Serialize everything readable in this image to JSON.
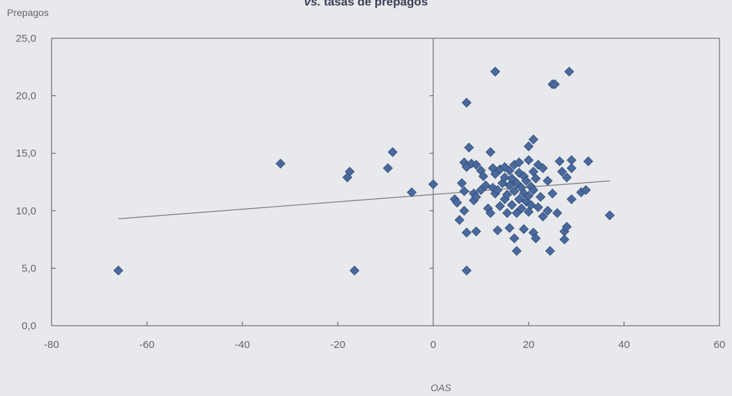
{
  "chart_data": {
    "type": "scatter",
    "title_prefix": "vs.",
    "title_rest": "tasas de prepagos",
    "ylabel": "Prepagos",
    "xlabel": "OAS",
    "xlim": [
      -80,
      60
    ],
    "ylim": [
      0,
      25
    ],
    "x_ticks": [
      "-80",
      "-60",
      "-40",
      "-20",
      "0",
      "20",
      "40",
      "60"
    ],
    "y_ticks": [
      "0,0",
      "5,0",
      "10,0",
      "15,0",
      "20,0",
      "25,0"
    ],
    "grid": false,
    "marker_color": "#4a6a9e",
    "trendline": {
      "x": [
        -66,
        37
      ],
      "y": [
        9.3,
        12.6
      ]
    },
    "points": [
      [
        -66,
        4.8
      ],
      [
        -32,
        14.1
      ],
      [
        -17.5,
        13.4
      ],
      [
        -18,
        12.9
      ],
      [
        -16.5,
        4.8
      ],
      [
        -9.5,
        13.7
      ],
      [
        -8.5,
        15.1
      ],
      [
        -4.5,
        11.6
      ],
      [
        0,
        12.3
      ],
      [
        4.5,
        11.0
      ],
      [
        5,
        10.7
      ],
      [
        5.5,
        9.2
      ],
      [
        6,
        12.4
      ],
      [
        6.5,
        11.7
      ],
      [
        6.5,
        10.0
      ],
      [
        6.5,
        14.2
      ],
      [
        7,
        8.1
      ],
      [
        7,
        13.8
      ],
      [
        7,
        19.4
      ],
      [
        7,
        4.8
      ],
      [
        7.5,
        15.5
      ],
      [
        8,
        14.1
      ],
      [
        8.5,
        11.5
      ],
      [
        8.5,
        10.9
      ],
      [
        9,
        11.2
      ],
      [
        9,
        14.0
      ],
      [
        9,
        8.2
      ],
      [
        10,
        11.8
      ],
      [
        10,
        13.5
      ],
      [
        10.5,
        13.0
      ],
      [
        11,
        12.2
      ],
      [
        11.5,
        10.2
      ],
      [
        12,
        9.8
      ],
      [
        12,
        15.1
      ],
      [
        12.5,
        13.7
      ],
      [
        12.5,
        12.0
      ],
      [
        13,
        11.5
      ],
      [
        13,
        13.2
      ],
      [
        13,
        22.1
      ],
      [
        13.5,
        8.3
      ],
      [
        13.5,
        11.8
      ],
      [
        14,
        13.6
      ],
      [
        14,
        10.4
      ],
      [
        14.5,
        12.4
      ],
      [
        15,
        11.0
      ],
      [
        15,
        12.9
      ],
      [
        15,
        13.8
      ],
      [
        15.5,
        9.8
      ],
      [
        15.5,
        11.4
      ],
      [
        16,
        12.2
      ],
      [
        16,
        13.5
      ],
      [
        16,
        8.5
      ],
      [
        16.5,
        10.5
      ],
      [
        16.5,
        12.8
      ],
      [
        17,
        11.7
      ],
      [
        17,
        14.0
      ],
      [
        17,
        7.6
      ],
      [
        17.5,
        6.5
      ],
      [
        17.5,
        9.8
      ],
      [
        17.5,
        12.4
      ],
      [
        18,
        11.0
      ],
      [
        18,
        13.3
      ],
      [
        18,
        14.2
      ],
      [
        18.5,
        10.2
      ],
      [
        18.5,
        12.0
      ],
      [
        19,
        11.5
      ],
      [
        19,
        13.0
      ],
      [
        19,
        8.4
      ],
      [
        19.5,
        10.8
      ],
      [
        19.5,
        12.6
      ],
      [
        20,
        14.4
      ],
      [
        20,
        15.6
      ],
      [
        20,
        11.3
      ],
      [
        20,
        9.9
      ],
      [
        20.5,
        12.1
      ],
      [
        20.5,
        10.5
      ],
      [
        21,
        13.4
      ],
      [
        21,
        16.2
      ],
      [
        21,
        11.8
      ],
      [
        21,
        8.1
      ],
      [
        21.5,
        7.6
      ],
      [
        21.5,
        12.8
      ],
      [
        22,
        14.0
      ],
      [
        22,
        10.3
      ],
      [
        22.5,
        11.2
      ],
      [
        23,
        13.7
      ],
      [
        23,
        9.5
      ],
      [
        24,
        12.6
      ],
      [
        24,
        10.0
      ],
      [
        24.5,
        6.5
      ],
      [
        25,
        11.5
      ],
      [
        25,
        21.0
      ],
      [
        25.5,
        21.0
      ],
      [
        26,
        9.8
      ],
      [
        26.5,
        14.3
      ],
      [
        27,
        13.4
      ],
      [
        27.5,
        8.2
      ],
      [
        27.5,
        7.5
      ],
      [
        28,
        12.9
      ],
      [
        28,
        8.6
      ],
      [
        28.5,
        22.1
      ],
      [
        29,
        13.7
      ],
      [
        29,
        11.0
      ],
      [
        29,
        14.4
      ],
      [
        31,
        11.6
      ],
      [
        32,
        11.8
      ],
      [
        32.5,
        14.3
      ],
      [
        37,
        9.6
      ]
    ]
  }
}
